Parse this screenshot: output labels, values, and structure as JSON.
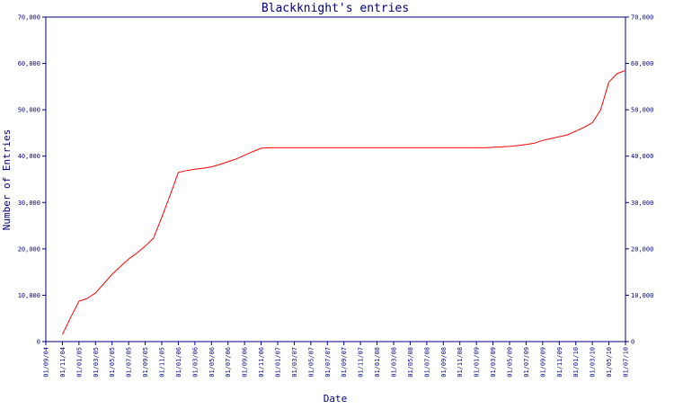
{
  "chart_data": {
    "type": "line",
    "title": "Blackknight's entries",
    "xlabel": "Date",
    "ylabel": "Number of Entries",
    "ylim": [
      0,
      70000
    ],
    "yticks": [
      0,
      10000,
      20000,
      30000,
      40000,
      50000,
      60000,
      70000
    ],
    "ytick_labels": [
      "0",
      "10,000",
      "20,000",
      "30,000",
      "40,000",
      "50,000",
      "60,000",
      "70,000"
    ],
    "xticks": [
      "01/09/04",
      "01/11/04",
      "01/01/05",
      "01/03/05",
      "01/05/05",
      "01/07/05",
      "01/09/05",
      "01/11/05",
      "01/01/06",
      "01/03/06",
      "01/05/06",
      "01/07/06",
      "01/09/06",
      "01/11/06",
      "01/01/07",
      "01/03/07",
      "01/05/07",
      "01/07/07",
      "01/09/07",
      "01/11/07",
      "01/01/08",
      "01/03/08",
      "01/05/08",
      "01/07/08",
      "01/09/08",
      "01/11/08",
      "01/01/09",
      "01/03/09",
      "01/05/09",
      "01/07/09",
      "01/09/09",
      "01/11/09",
      "01/01/10",
      "01/03/10",
      "01/05/10",
      "01/07/10"
    ],
    "grid": false,
    "colors": {
      "line": "#ff0000",
      "axis": "#000080",
      "text": "#000080",
      "background": "#ffffff"
    },
    "series": [
      {
        "x": [
          "01/11/04",
          "01/12/04",
          "01/01/05",
          "01/02/05",
          "01/03/05",
          "01/04/05",
          "01/05/05",
          "01/06/05",
          "01/07/05",
          "01/08/05",
          "01/09/05",
          "01/10/05",
          "01/11/05",
          "01/12/05",
          "01/01/06",
          "01/02/06",
          "01/03/06",
          "01/04/06",
          "01/05/06",
          "01/06/06",
          "01/07/06",
          "01/08/06",
          "01/09/06",
          "01/10/06",
          "01/11/06",
          "01/12/06",
          "01/01/07",
          "01/01/08",
          "01/01/09",
          "01/02/09",
          "01/03/09",
          "01/04/09",
          "01/05/09",
          "01/06/09",
          "01/07/09",
          "01/08/09",
          "01/09/09",
          "01/10/09",
          "01/11/09",
          "01/12/09",
          "01/01/10",
          "01/02/10",
          "01/03/10",
          "01/04/10",
          "01/05/10",
          "01/06/10",
          "01/07/10"
        ],
        "values": [
          1500,
          5200,
          8700,
          9300,
          10500,
          12500,
          14500,
          16200,
          17800,
          19100,
          20600,
          22300,
          26800,
          31500,
          36500,
          36900,
          37200,
          37400,
          37700,
          38200,
          38800,
          39400,
          40200,
          41000,
          41700,
          41800,
          41800,
          41800,
          41800,
          41800,
          41900,
          42000,
          42100,
          42300,
          42500,
          42800,
          43400,
          43800,
          44200,
          44600,
          45400,
          46200,
          47200,
          50000,
          56000,
          57800,
          58500
        ]
      }
    ]
  }
}
